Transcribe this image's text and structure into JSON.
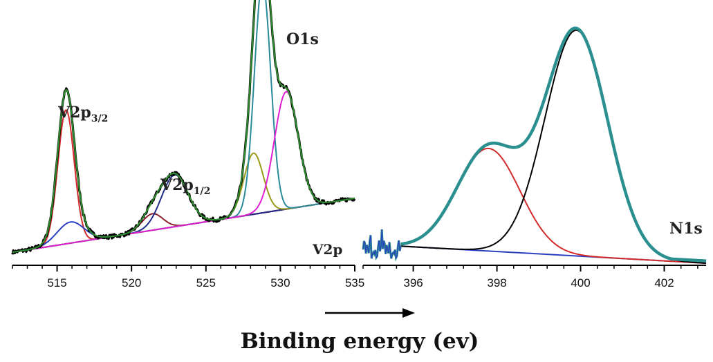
{
  "figure": {
    "xlabel": "Binding energy (ev)"
  },
  "chart_data": [
    {
      "type": "line",
      "panel": "left",
      "xlim": [
        512,
        535
      ],
      "ylim": [
        0,
        1
      ],
      "xticks": [
        515,
        520,
        525,
        530,
        535
      ],
      "x_axis_label": "",
      "y_axis_label": "",
      "annotations": {
        "v2p32_main": "V2p",
        "v2p32_sub": "3/2",
        "v2p12_main": "V2p",
        "v2p12_sub": "1/2",
        "o1s": "O1s",
        "v2p": "V2p"
      },
      "baseline": {
        "x": [
          512,
          535
        ],
        "y": [
          0.02,
          0.25
        ]
      },
      "components": [
        {
          "color": "#d22a2a",
          "peaks": [
            {
              "center": 515.6,
              "amp": 0.57,
              "sigma": 0.55
            }
          ]
        },
        {
          "color": "#2a3fbf",
          "peaks": [
            {
              "center": 515.9,
              "amp": 0.09,
              "sigma": 0.9
            }
          ]
        },
        {
          "color": "#8a1f2e",
          "peaks": [
            {
              "center": 521.4,
              "amp": 0.07,
              "sigma": 0.7
            }
          ]
        },
        {
          "color": "#1f2a8a",
          "peaks": [
            {
              "center": 522.9,
              "amp": 0.22,
              "sigma": 0.9
            }
          ]
        },
        {
          "color": "#9a9a1a",
          "peaks": [
            {
              "center": 528.2,
              "amp": 0.26,
              "sigma": 0.65
            }
          ]
        },
        {
          "color": "#2a8a9a",
          "peaks": [
            {
              "center": 528.8,
              "amp": 0.98,
              "sigma": 0.55
            }
          ]
        },
        {
          "color": "#e020d0",
          "peaks": [
            {
              "center": 530.4,
              "amp": 0.5,
              "sigma": 0.8
            }
          ]
        }
      ],
      "envelopes": [
        {
          "color": "#000000",
          "width": 3.2,
          "noise": true
        },
        {
          "color": "#2f8a2f",
          "width": 2.2,
          "noise": false
        }
      ]
    },
    {
      "type": "line",
      "panel": "right",
      "xlim": [
        394.8,
        403
      ],
      "ylim": [
        0,
        1
      ],
      "xticks": [
        396,
        398,
        400,
        402
      ],
      "x_axis_label": "",
      "y_axis_label": "",
      "annotations": {
        "n1s": "N1s"
      },
      "baseline": {
        "x": [
          395.2,
          403
        ],
        "y": [
          0.08,
          0.0
        ]
      },
      "components": [
        {
          "color": "#d22a2a",
          "peaks": [
            {
              "center": 397.8,
              "amp": 0.45,
              "sigma": 0.75
            }
          ]
        },
        {
          "color": "#000000",
          "peaks": [
            {
              "center": 399.9,
              "amp": 0.99,
              "sigma": 0.75
            }
          ]
        }
      ],
      "envelopes": [
        {
          "color": "#2b8f8f",
          "width": 4.5,
          "noise": false
        }
      ],
      "glitch_x_start": 394.8,
      "glitch_x_end": 395.7
    }
  ]
}
